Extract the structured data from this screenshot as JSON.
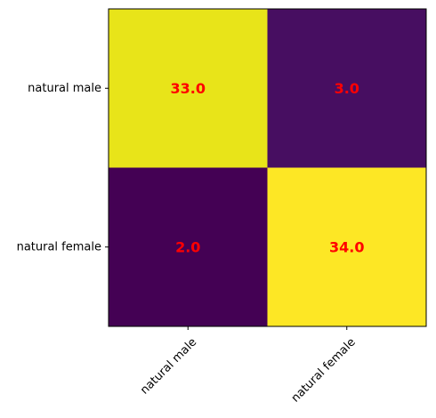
{
  "chart_data": {
    "type": "heatmap",
    "title": "",
    "xlabel": "",
    "ylabel": "",
    "x_categories": [
      "natural male",
      "natural female"
    ],
    "y_categories": [
      "natural male",
      "natural female"
    ],
    "values": [
      [
        33.0,
        3.0
      ],
      [
        2.0,
        34.0
      ]
    ],
    "cell_labels": [
      [
        "33.0",
        "3.0"
      ],
      [
        "2.0",
        "34.0"
      ]
    ],
    "value_range": [
      2.0,
      34.0
    ],
    "colormap": "viridis",
    "cell_colors": [
      [
        "#e8e419",
        "#470e61"
      ],
      [
        "#440154",
        "#fde725"
      ]
    ],
    "annotation_color": "#ff0000",
    "x_tick_rotation_deg": 45,
    "grid": false,
    "colorbar": false
  }
}
